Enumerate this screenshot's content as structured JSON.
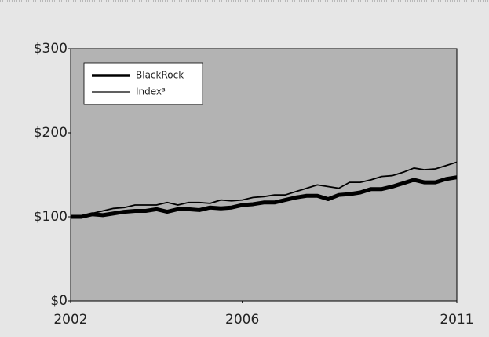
{
  "chart_data": {
    "type": "line",
    "x": [
      2002,
      2002.25,
      2002.5,
      2002.75,
      2003,
      2003.25,
      2003.5,
      2003.75,
      2004,
      2004.25,
      2004.5,
      2004.75,
      2005,
      2005.25,
      2005.5,
      2005.75,
      2006,
      2006.25,
      2006.5,
      2006.75,
      2007,
      2007.25,
      2007.5,
      2007.75,
      2008,
      2008.25,
      2008.5,
      2008.75,
      2009,
      2009.25,
      2009.5,
      2009.75,
      2010,
      2010.25,
      2010.5,
      2010.75,
      2011
    ],
    "series": [
      {
        "name": "BlackRock",
        "color": "#000000",
        "values": [
          100,
          100,
          103,
          102,
          104,
          106,
          107,
          107,
          109,
          106,
          109,
          109,
          108,
          111,
          110,
          111,
          114,
          115,
          117,
          117,
          120,
          123,
          125,
          125,
          121,
          126,
          127,
          129,
          133,
          133,
          136,
          140,
          144,
          141,
          141,
          145,
          147
        ]
      },
      {
        "name": "Index³",
        "color": "#000000",
        "values": [
          100,
          100,
          104,
          107,
          110,
          111,
          114,
          114,
          114,
          117,
          114,
          117,
          117,
          116,
          120,
          119,
          120,
          123,
          124,
          126,
          126,
          130,
          134,
          138,
          136,
          134,
          141,
          141,
          144,
          148,
          149,
          153,
          158,
          156,
          157,
          161,
          165
        ]
      }
    ],
    "xlim": [
      2002,
      2011
    ],
    "xticks": [
      2002,
      2006,
      2011
    ],
    "ylim": [
      0,
      300
    ],
    "yticks": [
      {
        "value": 0,
        "label": "$0"
      },
      {
        "value": 100,
        "label": "$100"
      },
      {
        "value": 200,
        "label": "$200"
      },
      {
        "value": 300,
        "label": "$300"
      }
    ],
    "legend": "top-left"
  }
}
